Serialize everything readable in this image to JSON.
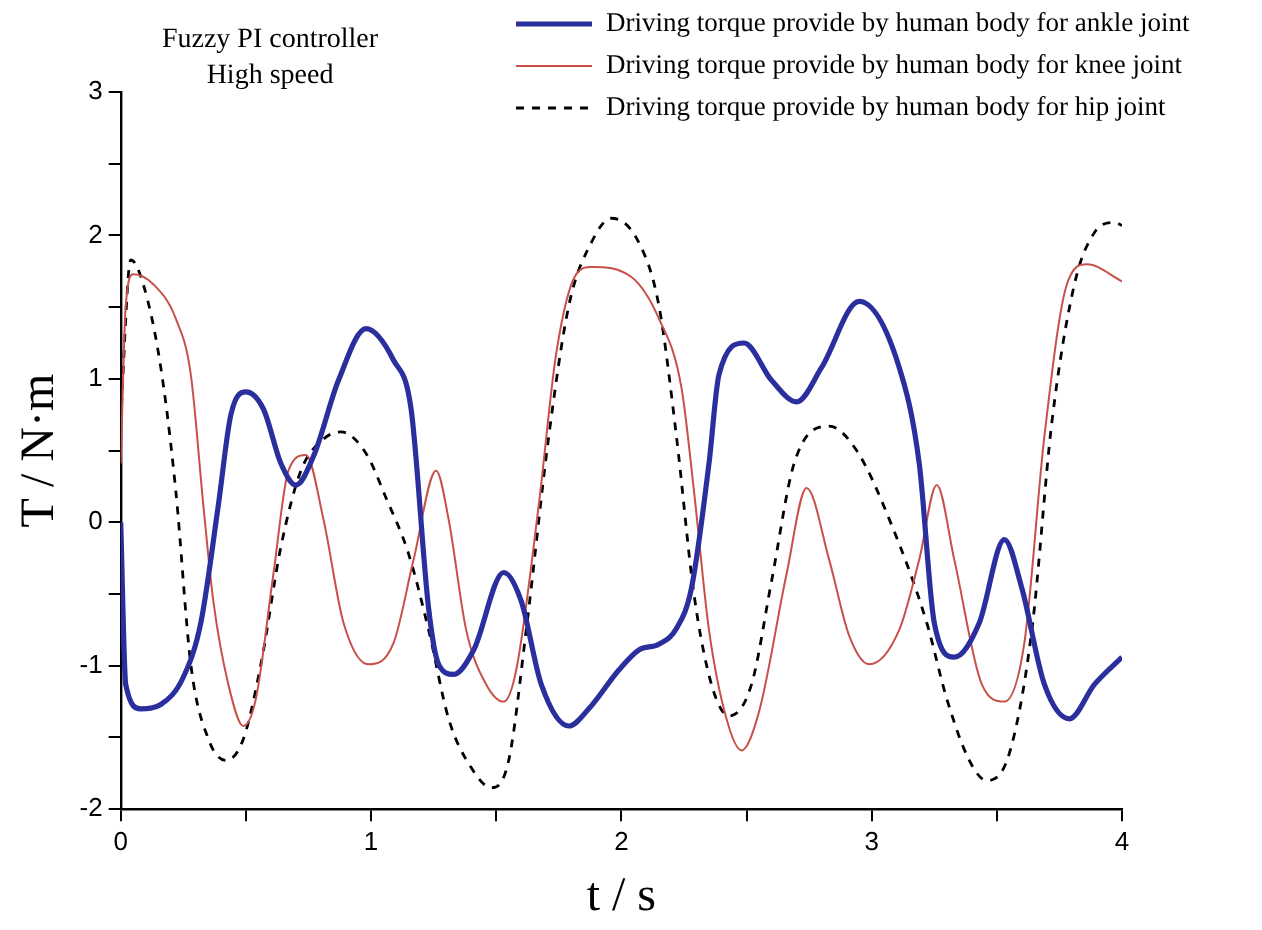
{
  "chart_data": {
    "type": "line",
    "xlabel": "t / s",
    "ylabel": "T / N·m",
    "annotations": [
      "Fuzzy PI controller",
      "High speed"
    ],
    "xlim": [
      0,
      4
    ],
    "ylim": [
      -2,
      3
    ],
    "xticks": [
      0,
      {
        "value": 0.5,
        "label": null
      },
      1,
      {
        "value": 1.5,
        "label": null
      },
      2,
      {
        "value": 2.5,
        "label": null
      },
      3,
      {
        "value": 3.5,
        "label": null
      },
      4
    ],
    "yticks": [
      -2,
      {
        "value": -1.5,
        "label": null
      },
      -1,
      {
        "value": -0.5,
        "label": null
      },
      0,
      {
        "value": 0.5,
        "label": null
      },
      1,
      {
        "value": 1.5,
        "label": null
      },
      2,
      {
        "value": 2.5,
        "label": null
      },
      3
    ],
    "grid": false,
    "legend": "top right",
    "marker": "none",
    "series": [
      {
        "name": "Driving torque provide by human body for ankle joint",
        "color": "#2b2f9e",
        "line_style": "solid",
        "x": [
          0,
          0.02,
          0.08,
          0.16,
          0.25,
          0.32,
          0.39,
          0.44,
          0.5,
          0.57,
          0.64,
          0.7,
          0.77,
          0.87,
          0.98,
          1.09,
          1.16,
          1.23,
          1.27,
          1.33,
          1.41,
          1.53,
          1.6,
          1.68,
          1.79,
          1.87,
          1.99,
          2.07,
          2.15,
          2.22,
          2.28,
          2.35,
          2.39,
          2.49,
          2.6,
          2.7,
          2.8,
          2.95,
          3.11,
          3.19,
          3.25,
          3.33,
          3.43,
          3.53,
          3.6,
          3.69,
          3.79,
          3.89,
          4.0
        ],
        "values": [
          0,
          -1.13,
          -1.3,
          -1.27,
          -1.08,
          -0.7,
          0.12,
          0.75,
          0.91,
          0.79,
          0.41,
          0.26,
          0.46,
          0.99,
          1.35,
          1.13,
          0.79,
          -0.6,
          -0.99,
          -1.06,
          -0.89,
          -0.35,
          -0.55,
          -1.13,
          -1.42,
          -1.3,
          -1.03,
          -0.89,
          -0.85,
          -0.74,
          -0.46,
          0.41,
          1.03,
          1.25,
          0.99,
          0.84,
          1.08,
          1.54,
          1.08,
          0.41,
          -0.7,
          -0.94,
          -0.7,
          -0.12,
          -0.46,
          -1.13,
          -1.37,
          -1.13,
          -0.94
        ]
      },
      {
        "name": "Driving torque provide by human body for knee joint",
        "color": "#c8504a",
        "line_style": "solid",
        "x": [
          0,
          0.02,
          0.05,
          0.13,
          0.22,
          0.28,
          0.33,
          0.37,
          0.43,
          0.49,
          0.54,
          0.61,
          0.67,
          0.74,
          0.81,
          0.89,
          0.99,
          1.09,
          1.17,
          1.26,
          1.31,
          1.38,
          1.46,
          1.53,
          1.58,
          1.67,
          1.74,
          1.82,
          1.88,
          2.04,
          2.15,
          2.24,
          2.29,
          2.35,
          2.42,
          2.48,
          2.55,
          2.66,
          2.74,
          2.83,
          2.91,
          2.99,
          3.11,
          3.19,
          3.26,
          3.33,
          3.44,
          3.53,
          3.61,
          3.69,
          3.78,
          3.86,
          4.0
        ],
        "values": [
          0.41,
          1.51,
          1.73,
          1.66,
          1.42,
          1.03,
          0.12,
          -0.55,
          -1.13,
          -1.42,
          -1.23,
          -0.36,
          0.36,
          0.47,
          0.02,
          -0.7,
          -0.99,
          -0.84,
          -0.26,
          0.36,
          0.02,
          -0.75,
          -1.13,
          -1.25,
          -1.03,
          0.12,
          1.18,
          1.73,
          1.78,
          1.71,
          1.42,
          0.94,
          0.22,
          -0.75,
          -1.37,
          -1.59,
          -1.32,
          -0.36,
          0.24,
          -0.26,
          -0.79,
          -0.99,
          -0.75,
          -0.26,
          0.26,
          -0.26,
          -1.13,
          -1.25,
          -0.84,
          0.6,
          1.66,
          1.8,
          1.68
        ]
      },
      {
        "name": "Driving torque provide by human body for hip joint",
        "color": "#000000",
        "line_style": "dashed",
        "x": [
          0,
          0.03,
          0.04,
          0.09,
          0.16,
          0.22,
          0.28,
          0.35,
          0.42,
          0.49,
          0.56,
          0.64,
          0.72,
          0.81,
          0.88,
          0.98,
          1.06,
          1.15,
          1.23,
          1.31,
          1.4,
          1.48,
          1.55,
          1.62,
          1.71,
          1.79,
          1.88,
          1.96,
          2.07,
          2.15,
          2.22,
          2.29,
          2.36,
          2.43,
          2.52,
          2.6,
          2.69,
          2.83,
          2.94,
          3.08,
          3.22,
          3.3,
          3.39,
          3.46,
          3.55,
          3.64,
          3.72,
          3.81,
          3.89,
          3.97,
          4.0
        ],
        "values": [
          0.7,
          1.71,
          1.83,
          1.66,
          1.08,
          0.22,
          -0.99,
          -1.51,
          -1.66,
          -1.51,
          -0.99,
          -0.17,
          0.36,
          0.58,
          0.63,
          0.48,
          0.17,
          -0.22,
          -0.75,
          -1.37,
          -1.71,
          -1.85,
          -1.66,
          -0.75,
          0.6,
          1.51,
          1.95,
          2.12,
          1.95,
          1.51,
          0.6,
          -0.5,
          -1.13,
          -1.35,
          -1.13,
          -0.41,
          0.41,
          0.67,
          0.5,
          -0.02,
          -0.7,
          -1.23,
          -1.66,
          -1.8,
          -1.61,
          -0.75,
          0.7,
          1.66,
          2.02,
          2.09,
          2.07
        ]
      }
    ]
  }
}
